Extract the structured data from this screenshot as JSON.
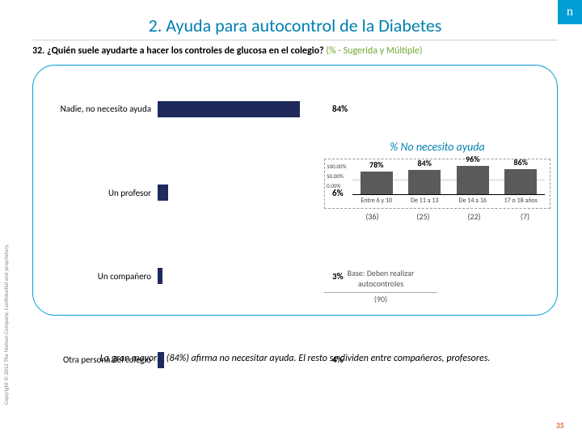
{
  "logo": "n",
  "title": "2. Ayuda para autocontrol de la Diabetes",
  "question_num": "32.",
  "question_text": "¿Quién suele ayudarte a hacer los controles de glucosa en el colegio?",
  "question_hint": "(% - Sugerida y Múltiple)",
  "main_chart": {
    "bar_color": "#1f2a5b",
    "max": 100,
    "rows": [
      {
        "label": "Nadie, no necesito ayuda",
        "value": 84,
        "value_label": "84%"
      },
      {
        "label": "Un profesor",
        "value": 6,
        "value_label": "6%"
      },
      {
        "label": "Un compañero",
        "value": 3,
        "value_label": "3%"
      },
      {
        "label": "Otra persona del colegio",
        "value": 4,
        "value_label": "4%"
      }
    ]
  },
  "sub_chart": {
    "title": "% No necesito ayuda",
    "bar_color": "#5a5a5a",
    "max": 100,
    "yticks": [
      "100.00%",
      "50.00%",
      "0.00%"
    ],
    "bars": [
      {
        "value": 78,
        "value_label": "78%",
        "xlabel": "Entre 6 y 10",
        "count": "(36)"
      },
      {
        "value": 84,
        "value_label": "84%",
        "xlabel": "De 11 a 13",
        "count": "(25)"
      },
      {
        "value": 96,
        "value_label": "96%",
        "xlabel": "De 14 a 16",
        "count": "(22)"
      },
      {
        "value": 86,
        "value_label": "86%",
        "xlabel": "17 o 18 años",
        "count": "(7)"
      }
    ]
  },
  "base_note": "Base: Deben realizar autocontroles",
  "base_n": "(90)",
  "conclusion": "La gran mayoría (84%) afirma no necesitar ayuda. El resto se dividen entre compañeros, profesores.",
  "copyright": "Copyright © 2012 The Nielsen Company. Confidential and proprietary.",
  "pagenum": "35"
}
